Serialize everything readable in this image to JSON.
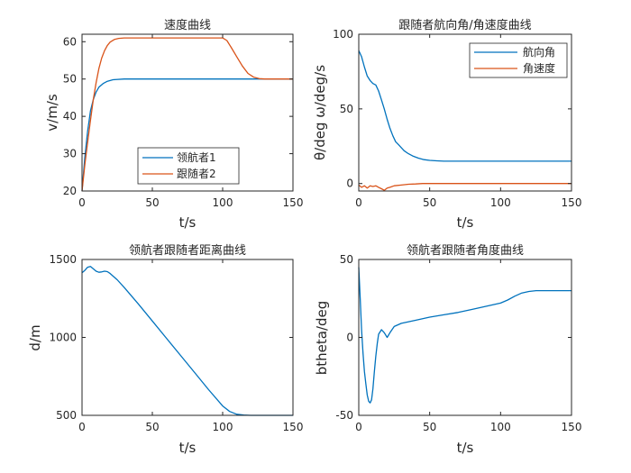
{
  "colors": {
    "series_blue": "#0072BD",
    "series_orange": "#D95319",
    "axes": "#262626",
    "background": "#ffffff"
  },
  "chart_data": [
    {
      "type": "line",
      "title": "速度曲线",
      "xlabel": "t/s",
      "ylabel": "v/m/s",
      "xlim": [
        0,
        150
      ],
      "ylim": [
        20,
        62
      ],
      "xticks": [
        0,
        50,
        100,
        150
      ],
      "yticks": [
        20,
        30,
        40,
        50,
        60
      ],
      "xtick_labels": [
        "0",
        "50",
        "100",
        "150"
      ],
      "ytick_labels": [
        "20",
        "30",
        "40",
        "50",
        "60"
      ],
      "grid": false,
      "legend_position": "inside-lower-right",
      "series": [
        {
          "name": "领航者1",
          "color": "#0072BD",
          "x": [
            0,
            2,
            4,
            6,
            8,
            10,
            12,
            15,
            18,
            22,
            30,
            40,
            60,
            80,
            100,
            120,
            150
          ],
          "y": [
            20,
            29,
            36,
            41.5,
            44.5,
            46.5,
            47.8,
            48.8,
            49.4,
            49.8,
            50,
            50,
            50,
            50,
            50,
            50,
            50
          ]
        },
        {
          "name": "跟随者2",
          "color": "#D95319",
          "x": [
            0,
            2,
            4,
            6,
            8,
            10,
            12,
            14,
            16,
            18,
            20,
            23,
            26,
            30,
            35,
            40,
            60,
            80,
            95,
            100,
            103,
            106,
            110,
            114,
            118,
            122,
            126,
            130,
            140,
            150
          ],
          "y": [
            20,
            27,
            33,
            39,
            44.5,
            49,
            52.8,
            55.6,
            57.6,
            59,
            59.9,
            60.6,
            60.9,
            61,
            61,
            61,
            61,
            61,
            61,
            61,
            60.3,
            58.5,
            56,
            53.5,
            51.5,
            50.5,
            50.1,
            50,
            50,
            50
          ]
        }
      ]
    },
    {
      "type": "line",
      "title": "跟随者航向角/角速度曲线",
      "xlabel": "t/s",
      "ylabel": "θ/deg ω/deg/s",
      "xlim": [
        0,
        150
      ],
      "ylim": [
        -5,
        100
      ],
      "xticks": [
        0,
        50,
        100,
        150
      ],
      "yticks": [
        0,
        50,
        100
      ],
      "xtick_labels": [
        "0",
        "50",
        "100",
        "150"
      ],
      "ytick_labels": [
        "0",
        "50",
        "100"
      ],
      "grid": false,
      "legend_position": "top-right",
      "series": [
        {
          "name": "航向角",
          "color": "#0072BD",
          "x": [
            0,
            2,
            4,
            6,
            8,
            10,
            12,
            14,
            16,
            18,
            20,
            22,
            24,
            26,
            28,
            30,
            32,
            35,
            38,
            42,
            46,
            50,
            55,
            60,
            80,
            100,
            120,
            150
          ],
          "y": [
            89,
            85,
            78,
            72,
            69,
            67,
            66,
            62,
            56,
            50,
            43,
            37,
            32,
            28,
            26,
            24,
            22,
            20,
            18.5,
            17,
            16,
            15.5,
            15.2,
            15,
            15,
            15,
            15,
            15
          ]
        },
        {
          "name": "角速度",
          "color": "#D95319",
          "x": [
            0,
            2,
            4,
            6,
            8,
            10,
            12,
            14,
            16,
            18,
            20,
            22,
            25,
            30,
            35,
            40,
            45,
            50,
            60,
            80,
            100,
            150
          ],
          "y": [
            -1,
            -2.5,
            -1.5,
            -3,
            -1.5,
            -2,
            -1.5,
            -2.5,
            -3.5,
            -4.5,
            -3,
            -2.5,
            -1.5,
            -1,
            -0.5,
            -0.3,
            0,
            0,
            0,
            0,
            0,
            0
          ]
        }
      ]
    },
    {
      "type": "line",
      "title": "领航者跟随者距离曲线",
      "xlabel": "t/s",
      "ylabel": "d/m",
      "xlim": [
        0,
        150
      ],
      "ylim": [
        500,
        1500
      ],
      "xticks": [
        0,
        50,
        100,
        150
      ],
      "yticks": [
        500,
        1000,
        1500
      ],
      "xtick_labels": [
        "0",
        "50",
        "100",
        "150"
      ],
      "ytick_labels": [
        "500",
        "1000",
        "1500"
      ],
      "grid": false,
      "legend_position": "none",
      "series": [
        {
          "color": "#0072BD",
          "x": [
            0,
            2,
            4,
            6,
            8,
            10,
            12,
            14,
            16,
            18,
            20,
            25,
            30,
            40,
            50,
            60,
            70,
            80,
            90,
            100,
            105,
            110,
            115,
            120,
            130,
            140,
            150
          ],
          "y": [
            1415,
            1430,
            1450,
            1455,
            1440,
            1425,
            1418,
            1420,
            1425,
            1422,
            1410,
            1370,
            1320,
            1215,
            1105,
            995,
            885,
            775,
            665,
            560,
            525,
            507,
            502,
            500,
            500,
            500,
            500
          ]
        }
      ]
    },
    {
      "type": "line",
      "title": "领航者跟随者角度曲线",
      "xlabel": "t/s",
      "ylabel": "btheta/deg",
      "xlim": [
        0,
        150
      ],
      "ylim": [
        -50,
        50
      ],
      "xticks": [
        0,
        50,
        100,
        150
      ],
      "yticks": [
        -50,
        0,
        50
      ],
      "xtick_labels": [
        "0",
        "50",
        "100",
        "150"
      ],
      "ytick_labels": [
        "-50",
        "0",
        "50"
      ],
      "grid": false,
      "legend_position": "none",
      "series": [
        {
          "color": "#0072BD",
          "x": [
            0,
            1,
            2,
            3,
            4,
            5,
            6,
            7,
            8,
            9,
            10,
            11,
            12,
            13,
            14,
            16,
            18,
            20,
            22,
            25,
            30,
            40,
            50,
            60,
            70,
            80,
            90,
            100,
            105,
            110,
            115,
            120,
            125,
            150
          ],
          "y": [
            45,
            25,
            5,
            -10,
            -22,
            -30,
            -37,
            -41,
            -42,
            -40,
            -33,
            -22,
            -12,
            -4,
            2,
            5,
            3,
            0,
            3,
            7,
            9,
            11,
            13,
            14.5,
            16,
            18,
            20,
            22,
            24,
            26.5,
            28.5,
            29.5,
            30,
            30
          ]
        }
      ]
    }
  ]
}
